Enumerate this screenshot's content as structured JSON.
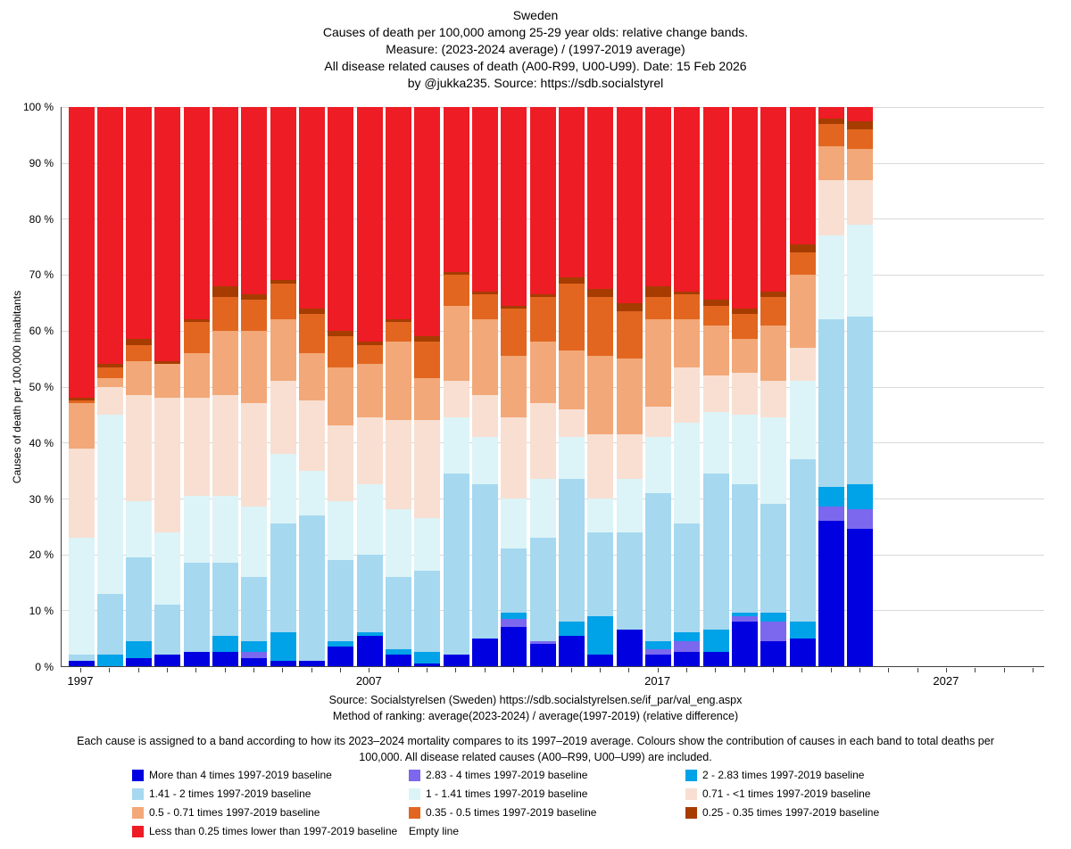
{
  "title": {
    "line1": "Sweden",
    "line2": "Causes of death per 100,000 among  25-29 year olds: relative change bands.",
    "line3": "Measure: (2023-2024 average) / (1997-2019 average)",
    "line4": "All disease related causes of death (A00-R99, U00-U99).   Date: 15 Feb 2026",
    "line5": "by @jukka235. Source: https://sdb.socialstyrel"
  },
  "axes": {
    "y_label": "Causes of death per 100,000 inhabitants",
    "y_ticks": [
      "100 %",
      "90 %",
      "80 %",
      "70 %",
      "60 %",
      "50 %",
      "40 %",
      "30 %",
      "20 %",
      "10 %",
      "0 %"
    ],
    "x_tick_labels": [
      "1997",
      "2007",
      "2017",
      "2027"
    ]
  },
  "footer": {
    "source_line1": "Source: Socialstyrelsen (Sweden)  https://sdb.socialstyrelsen.se/if_par/val_eng.aspx",
    "source_line2": "Method of ranking: average(2023-2024) / average(1997-2019)  (relative difference)",
    "note": "Each cause  is assigned to a band according to how its 2023–2024 mortality compares to its 1997–2019 average. Colours show the contribution of causes in each band to total deaths per 100,000. All disease related causes (A00–R99, U00–U99) are included."
  },
  "legend": [
    {
      "label": "More than 4 times 1997-2019 baseline",
      "color": "#0000E0"
    },
    {
      "label": "2.83 - 4 times 1997-2019 baseline",
      "color": "#7B68EE"
    },
    {
      "label": "2 - 2.83 times 1997-2019 baseline",
      "color": "#00A2E8"
    },
    {
      "label": "1.41 - 2 times 1997-2019 baseline",
      "color": "#A6D8F0"
    },
    {
      "label": "1 - 1.41 times 1997-2019 baseline",
      "color": "#DCF4F7"
    },
    {
      "label": "0.71 - <1  times 1997-2019 baseline",
      "color": "#F8DFD2"
    },
    {
      "label": "0.5 - 0.71 times 1997-2019 baseline",
      "color": "#F2A878"
    },
    {
      "label": "0.35 - 0.5 times 1997-2019 baseline",
      "color": "#E2661F"
    },
    {
      "label": "0.25 - 0.35 times 1997-2019 baseline",
      "color": "#A63C00"
    },
    {
      "label": "Less than 0.25 times lower than 1997-2019 baseline",
      "color": "#EE1C25"
    },
    {
      "label": "Empty line",
      "color": null
    }
  ],
  "chart_data": {
    "type": "bar",
    "stacked": true,
    "percent_stacked": true,
    "title": "Sweden — Causes of death per 100,000 among 25-29 year olds: relative change bands",
    "xlabel": "",
    "ylabel": "Causes of death per 100,000 inhabitants",
    "ylim": [
      0,
      100
    ],
    "grid": true,
    "legend_position": "bottom",
    "x_axis_label_years": [
      1997,
      2007,
      2017,
      2027
    ],
    "x": [
      1997,
      1998,
      1999,
      2000,
      2001,
      2002,
      2003,
      2004,
      2005,
      2006,
      2007,
      2008,
      2009,
      2010,
      2011,
      2012,
      2013,
      2014,
      2015,
      2016,
      2017,
      2018,
      2019,
      2020,
      2021,
      2022,
      2023,
      2024
    ],
    "series": [
      {
        "name": "More than 4 times 1997-2019 baseline",
        "color": "#0000E0",
        "values": [
          1,
          0,
          1.5,
          2,
          2.5,
          2.5,
          1.5,
          1,
          1,
          3.5,
          5.5,
          2,
          0.5,
          2,
          5,
          7,
          4,
          5.5,
          2,
          6.5,
          2,
          2.5,
          2.5,
          8,
          4.5,
          5,
          26,
          24.5
        ]
      },
      {
        "name": "2.83 - 4 times 1997-2019 baseline",
        "color": "#7B68EE",
        "values": [
          0,
          0,
          0,
          0,
          0,
          0,
          1,
          0,
          0,
          0,
          0,
          0,
          0,
          0,
          0,
          1.5,
          0.5,
          0,
          0,
          0,
          1,
          2,
          0,
          1,
          3.5,
          0,
          2.5,
          3.5
        ]
      },
      {
        "name": "2 - 2.83 times 1997-2019 baseline",
        "color": "#00A2E8",
        "values": [
          0,
          2,
          3,
          0,
          0,
          3,
          2,
          5,
          0,
          1,
          0.5,
          1,
          2,
          0,
          0,
          1,
          0,
          2.5,
          7,
          0,
          1.5,
          1.5,
          4,
          0.5,
          1.5,
          3,
          3.5,
          4.5
        ]
      },
      {
        "name": "1.41 - 2 times 1997-2019 baseline",
        "color": "#A6D8F0",
        "values": [
          1,
          11,
          15,
          9,
          16,
          13,
          11.5,
          19.5,
          26,
          14.5,
          14,
          13,
          14.5,
          32.5,
          27.5,
          11.5,
          18.5,
          25.5,
          15,
          17.5,
          26.5,
          19.5,
          28,
          23,
          19.5,
          29,
          30,
          30
        ]
      },
      {
        "name": "1 - 1.41 times 1997-2019 baseline",
        "color": "#DCF4F7",
        "values": [
          21,
          32,
          10,
          13,
          12,
          12,
          12.5,
          12.5,
          8,
          10.5,
          12.5,
          12,
          9.5,
          10,
          8.5,
          9,
          10.5,
          7.5,
          6,
          9.5,
          10,
          18,
          11,
          12.5,
          15.5,
          14,
          15,
          16.5
        ]
      },
      {
        "name": "0.71 - <1  times 1997-2019 baseline",
        "color": "#F8DFD2",
        "values": [
          16,
          5,
          19,
          24,
          17.5,
          18,
          18.5,
          13,
          12.5,
          13.5,
          12,
          16,
          17.5,
          6.5,
          7.5,
          14.5,
          13.5,
          5,
          11.5,
          8,
          5.5,
          10,
          6.5,
          7.5,
          6.5,
          6,
          10,
          8
        ]
      },
      {
        "name": "0.5 - 0.71 times 1997-2019 baseline",
        "color": "#F2A878",
        "values": [
          8,
          1.5,
          6,
          6,
          8,
          11.5,
          13,
          11,
          8.5,
          10.5,
          9.5,
          14,
          7.5,
          13.5,
          13.5,
          11,
          11,
          10.5,
          14,
          13.5,
          15.5,
          8.5,
          9,
          6,
          10,
          13,
          6,
          5.5
        ]
      },
      {
        "name": "0.35 - 0.5 times 1997-2019 baseline",
        "color": "#E2661F",
        "values": [
          0.5,
          2,
          3,
          0,
          5.5,
          6,
          5.5,
          6.5,
          7,
          5.5,
          3.5,
          3.5,
          6.5,
          5.5,
          4.5,
          8.5,
          8,
          12,
          10.5,
          8.5,
          4,
          4.5,
          3.5,
          4.5,
          5,
          4,
          4,
          3.5
        ]
      },
      {
        "name": "0.25 - 0.35 times 1997-2019 baseline",
        "color": "#A63C00",
        "values": [
          0.5,
          0.5,
          1,
          0.5,
          0.5,
          2,
          1,
          0.5,
          1,
          1,
          0.5,
          0.5,
          1,
          0.5,
          0.5,
          0.5,
          0.5,
          1,
          1.5,
          1.5,
          2,
          0.5,
          1,
          1,
          1,
          1.5,
          1,
          1.5
        ]
      },
      {
        "name": "Less than 0.25 times lower than 1997-2019 baseline",
        "color": "#EE1C25",
        "values": [
          52,
          46,
          41.5,
          45.5,
          38,
          32,
          33.5,
          31,
          36,
          40,
          42,
          38,
          41,
          29.5,
          33,
          35.5,
          33.5,
          30.5,
          32.5,
          35,
          32,
          33,
          34.5,
          36,
          33,
          24.5,
          2,
          2.5
        ]
      }
    ]
  }
}
